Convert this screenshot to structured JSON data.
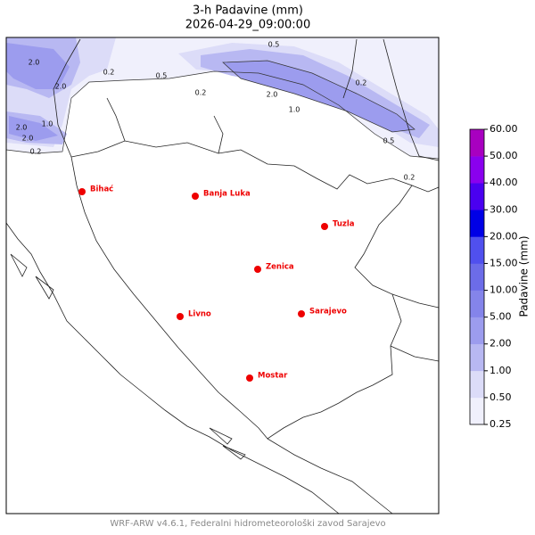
{
  "title": "3-h Padavine (mm)",
  "subtitle": "2026-04-29_09:00:00",
  "footer": "WRF-ARW v4.6.1, Federalni hidrometeorološki zavod Sarajevo",
  "cities": [
    "Bihać",
    "Banja Luka",
    "Tuzla",
    "Zenica",
    "Livno",
    "Sarajevo",
    "Mostar"
  ],
  "city_color": "#ee0000",
  "contour_labels": [
    "0.5",
    "2.0",
    "2.0",
    "0.2",
    "0.5",
    "0.2",
    "2.0",
    "1.0",
    "0.2",
    "0.5",
    "1.0",
    "2.0",
    "2.0",
    "0.2",
    "0.2"
  ],
  "colorbar": {
    "label": "Padavine (mm)",
    "ticks": [
      {
        "value": 0.25,
        "label": "0.25"
      },
      {
        "value": 0.5,
        "label": "0.50"
      },
      {
        "value": 1,
        "label": "1.00"
      },
      {
        "value": 2,
        "label": "2.00"
      },
      {
        "value": 5,
        "label": "5.00"
      },
      {
        "value": 10,
        "label": "10.00"
      },
      {
        "value": 15,
        "label": "15.00"
      },
      {
        "value": 20,
        "label": "20.00"
      },
      {
        "value": 30,
        "label": "30.00"
      },
      {
        "value": 40,
        "label": "40.00"
      },
      {
        "value": 50,
        "label": "50.00"
      },
      {
        "value": 60,
        "label": "60.00"
      }
    ],
    "colors": [
      "#f0f0fc",
      "#dcdcf8",
      "#b8b8f2",
      "#9c9cee",
      "#8484ea",
      "#6c6ce8",
      "#5050ee",
      "#0000e6",
      "#4a00f0",
      "#8a00ee",
      "#a800c0"
    ]
  }
}
